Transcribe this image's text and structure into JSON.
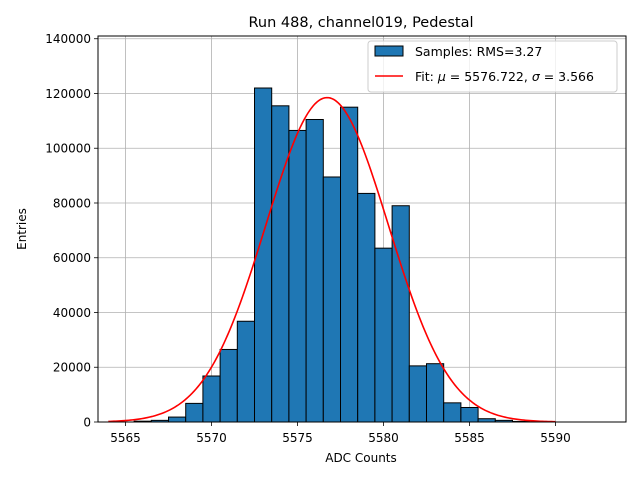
{
  "chart_data": {
    "type": "bar",
    "title": "Run 488, channel019, Pedestal",
    "xlabel": "ADC Counts",
    "ylabel": "Entries",
    "xlim": [
      5563.4,
      5594.1
    ],
    "ylim": [
      0,
      141000
    ],
    "grid": true,
    "legend_position": "top-right",
    "bar_color": "#1f77b4",
    "fit_color": "#ff0000",
    "xticks": [
      5565,
      5570,
      5575,
      5580,
      5585,
      5590
    ],
    "yticks": [
      0,
      20000,
      40000,
      60000,
      80000,
      100000,
      120000,
      140000
    ],
    "bin_width": 1,
    "bins": [
      {
        "x": 5566,
        "value": 300
      },
      {
        "x": 5567,
        "value": 600
      },
      {
        "x": 5568,
        "value": 1800
      },
      {
        "x": 5569,
        "value": 6800
      },
      {
        "x": 5570,
        "value": 16800
      },
      {
        "x": 5571,
        "value": 26500
      },
      {
        "x": 5572,
        "value": 36800
      },
      {
        "x": 5573,
        "value": 122000
      },
      {
        "x": 5574,
        "value": 115500
      },
      {
        "x": 5575,
        "value": 106500
      },
      {
        "x": 5576,
        "value": 110500
      },
      {
        "x": 5577,
        "value": 89500
      },
      {
        "x": 5578,
        "value": 115000
      },
      {
        "x": 5579,
        "value": 83500
      },
      {
        "x": 5580,
        "value": 63500
      },
      {
        "x": 5581,
        "value": 79000
      },
      {
        "x": 5582,
        "value": 20500
      },
      {
        "x": 5583,
        "value": 21300
      },
      {
        "x": 5584,
        "value": 7000
      },
      {
        "x": 5585,
        "value": 5300
      },
      {
        "x": 5586,
        "value": 1200
      },
      {
        "x": 5587,
        "value": 600
      },
      {
        "x": 5588,
        "value": 200
      }
    ],
    "fit": {
      "mu": 5576.722,
      "sigma": 3.566,
      "amplitude": 118500,
      "x_range": [
        5564,
        5590
      ]
    },
    "legend": {
      "samples_label": "Samples: RMS=3.27",
      "fit_label_prefix": "Fit: ",
      "fit_mu_symbol": "μ",
      "fit_mu_value": " = 5576.722, ",
      "fit_sigma_symbol": "σ",
      "fit_sigma_value": " = 3.566"
    }
  }
}
